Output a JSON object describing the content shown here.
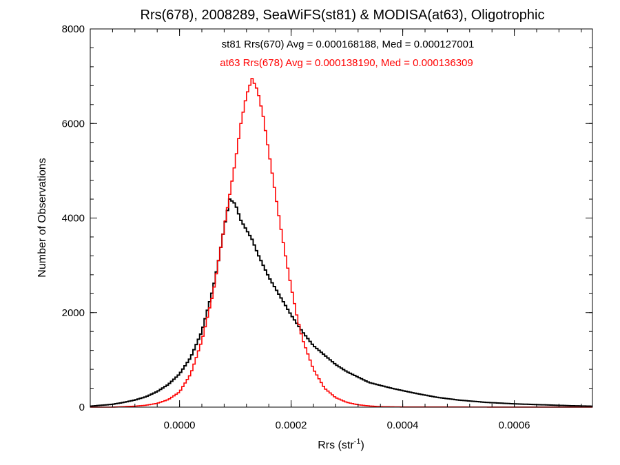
{
  "chart_data": {
    "type": "histogram",
    "title": "Rrs(678), 2008289, SeaWiFS(st81) & MODISA(at63), Oligotrophic",
    "xlabel": "Rrs (str",
    "xlabel_sup": "-1",
    "xlabel_close": ")",
    "ylabel": "Number of Observations",
    "xlim": [
      -0.00016,
      0.00074
    ],
    "ylim": [
      0,
      8000
    ],
    "x_ticks": [
      0.0,
      0.0002,
      0.0004,
      0.0006
    ],
    "x_tick_labels": [
      "0.0000",
      "0.0002",
      "0.0004",
      "0.0006"
    ],
    "y_ticks": [
      0,
      2000,
      4000,
      6000,
      8000
    ],
    "y_tick_labels": [
      "0",
      "2000",
      "4000",
      "6000",
      "8000"
    ],
    "annotations": [
      {
        "text": "st81 Rrs(670) Avg = 0.000168188, Med = 0.000127001",
        "color": "#000000"
      },
      {
        "text": "at63 Rrs(678) Avg = 0.000138190, Med = 0.000136309",
        "color": "#ff0000"
      }
    ],
    "series": [
      {
        "color": "#000000",
        "x": [
          -0.00016,
          -0.00014,
          -0.00012,
          -0.0001,
          -8e-05,
          -6e-05,
          -4e-05,
          -2e-05,
          0.0,
          2e-05,
          4e-05,
          6e-05,
          7e-05,
          8e-05,
          9e-05,
          0.0001,
          0.00011,
          0.00012,
          0.00013,
          0.00014,
          0.00016,
          0.00018,
          0.0002,
          0.00022,
          0.00024,
          0.00026,
          0.00028,
          0.0003,
          0.00034,
          0.00038,
          0.00042,
          0.00046,
          0.0005,
          0.00055,
          0.0006,
          0.00065,
          0.0007,
          0.00074
        ],
        "values": [
          20,
          40,
          60,
          100,
          150,
          220,
          330,
          480,
          700,
          1050,
          1600,
          2500,
          3100,
          3800,
          4400,
          4300,
          3950,
          3750,
          3550,
          3250,
          2750,
          2350,
          1950,
          1600,
          1300,
          1100,
          900,
          750,
          520,
          400,
          300,
          210,
          150,
          100,
          70,
          50,
          30,
          20
        ]
      },
      {
        "color": "#ff0000",
        "x": [
          -0.00016,
          -0.00012,
          -0.0001,
          -8e-05,
          -6e-05,
          -4e-05,
          -2e-05,
          0.0,
          2e-05,
          4e-05,
          6e-05,
          8e-05,
          0.0001,
          0.00011,
          0.00012,
          0.00013,
          0.00014,
          0.00015,
          0.00016,
          0.00017,
          0.00018,
          0.00019,
          0.0002,
          0.00021,
          0.00022,
          0.00024,
          0.00026,
          0.00028,
          0.0003,
          0.00032,
          0.00034,
          0.00036,
          0.0004,
          0.00074
        ],
        "values": [
          0,
          0,
          10,
          20,
          40,
          80,
          160,
          320,
          700,
          1400,
          2400,
          3800,
          5200,
          6000,
          6600,
          6950,
          6700,
          6150,
          5400,
          4650,
          3900,
          3200,
          2550,
          1950,
          1450,
          800,
          400,
          200,
          100,
          50,
          25,
          10,
          3,
          0
        ]
      }
    ]
  }
}
